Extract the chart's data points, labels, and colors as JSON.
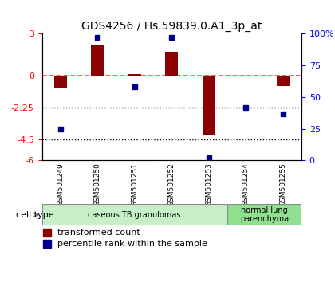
{
  "title": "GDS4256 / Hs.59839.0.A1_3p_at",
  "samples": [
    "GSM501249",
    "GSM501250",
    "GSM501251",
    "GSM501252",
    "GSM501253",
    "GSM501254",
    "GSM501255"
  ],
  "transformed_counts": [
    -0.8,
    2.2,
    0.15,
    1.7,
    -4.2,
    -0.05,
    -0.7
  ],
  "percentile_ranks": [
    25,
    97,
    58,
    97,
    2,
    42,
    37
  ],
  "ylim_left": [
    -6,
    3
  ],
  "yticks_left": [
    3,
    0,
    -2.25,
    -4.5,
    -6
  ],
  "ytick_labels_left": [
    "3",
    "0",
    "-2.25",
    "-4.5",
    "-6"
  ],
  "ylim_right": [
    0,
    100
  ],
  "yticks_right": [
    100,
    75,
    50,
    25,
    0
  ],
  "ytick_labels_right": [
    "100%",
    "75",
    "50",
    "25",
    "0"
  ],
  "hlines": [
    -2.25,
    -4.5
  ],
  "bar_color": "#8B0000",
  "dot_color": "#00008B",
  "zero_line_color": "#FF4444",
  "cell_types": [
    {
      "label": "caseous TB granulomas",
      "start": 0,
      "end": 5,
      "color": "#c8f0c8"
    },
    {
      "label": "normal lung\nparenchyma",
      "start": 5,
      "end": 7,
      "color": "#90e090"
    }
  ],
  "legend_labels": [
    "transformed count",
    "percentile rank within the sample"
  ],
  "cell_type_label": "cell type",
  "background_color": "#ffffff"
}
